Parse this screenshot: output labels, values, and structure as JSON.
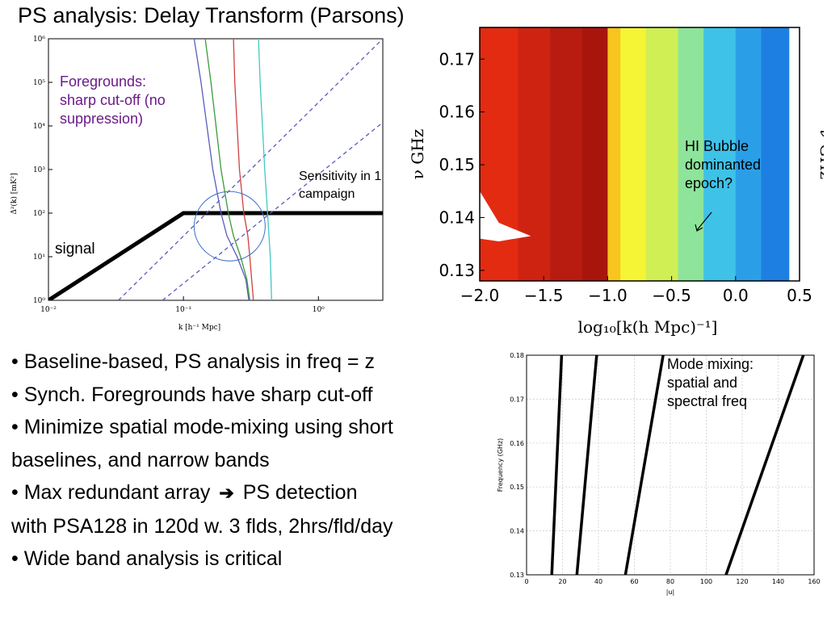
{
  "slide": {
    "title": "PS analysis: Delay Transform (Parsons)",
    "bullets": [
      {
        "text": "Baseline-based, PS analysis in freq = z"
      },
      {
        "text": "Synch. Foregrounds have sharp cut-off"
      },
      {
        "text": "Minimize spatial mode-mixing using short",
        "cont": "baselines, and narrow bands"
      },
      {
        "text": "Max redundant array",
        "arrow": "➔",
        "after": "PS detection",
        "cont": "with PSA128 in 120d w. 3 flds, 2hrs/fld/day"
      },
      {
        "text": "Wide band analysis is critical"
      }
    ]
  },
  "fig_ps": {
    "annotation_foregrounds": [
      "Foregrounds:",
      "sharp cut-off (no",
      "suppression)"
    ],
    "annotation_sensitivity": [
      "Sensitivity in 1",
      "campaign"
    ],
    "annotation_signal": "signal",
    "colors": {
      "foreground_note": "#6a1a8a",
      "signal": "#000000",
      "sensitivity": "#5b5bbf"
    }
  },
  "fig_bubble": {
    "annotation": [
      "HI Bubble",
      "dominanted",
      "epoch?"
    ],
    "colors": {
      "red": "#c81e10",
      "yellow": "#f5f535",
      "blue": "#1e8fe8"
    }
  },
  "fig_mode": {
    "annotation": [
      "Mode mixing:",
      "spatial and",
      "spectral freq"
    ]
  },
  "chart_data": [
    {
      "type": "line",
      "xlabel": "k [h⁻¹ Mpc]",
      "ylabel": "Δ²(k) [mK²]",
      "xscale": "log",
      "yscale": "log",
      "xlim": [
        0.01,
        3
      ],
      "ylim": [
        1,
        1000000
      ],
      "x_tick_labels": [
        "10⁻²",
        "10⁻¹",
        "10⁰"
      ],
      "y_tick_labels": [
        "10⁰",
        "10¹",
        "10²",
        "10³",
        "10⁴",
        "10⁵",
        "10⁶"
      ],
      "series": [
        {
          "color": "#000000",
          "points": [
            [
              0.01,
              1
            ],
            [
              0.1,
              100
            ],
            [
              3,
              100
            ]
          ]
        },
        {
          "color": "#5b5bbf",
          "dashed": true,
          "points": [
            [
              0.033,
              1
            ],
            [
              3,
              1000000
            ]
          ]
        },
        {
          "color": "#5b5bbf",
          "dashed": true,
          "points": [
            [
              0.07,
              1
            ],
            [
              3,
              12000
            ]
          ]
        },
        {
          "color": "#5b5bbf",
          "points": [
            [
              0.305,
              1
            ],
            [
              0.29,
              3
            ],
            [
              0.25,
              10
            ],
            [
              0.21,
              30
            ],
            [
              0.19,
              100
            ],
            [
              0.165,
              1000
            ],
            [
              0.135,
              100000
            ],
            [
              0.12,
              1000000
            ]
          ]
        },
        {
          "color": "#3a9b3a",
          "points": [
            [
              0.31,
              1
            ],
            [
              0.295,
              3
            ],
            [
              0.265,
              10
            ],
            [
              0.235,
              30
            ],
            [
              0.215,
              100
            ],
            [
              0.19,
              1000
            ],
            [
              0.16,
              100000
            ],
            [
              0.145,
              1000000
            ]
          ]
        },
        {
          "color": "#d04040",
          "points": [
            [
              0.33,
              1
            ],
            [
              0.32,
              3
            ],
            [
              0.31,
              10
            ],
            [
              0.3,
              30
            ],
            [
              0.28,
              100
            ],
            [
              0.26,
              1000
            ],
            [
              0.24,
              100000
            ],
            [
              0.235,
              1000000
            ]
          ]
        },
        {
          "color": "#40c8c0",
          "points": [
            [
              0.45,
              1
            ],
            [
              0.44,
              10
            ],
            [
              0.42,
              100
            ],
            [
              0.4,
              1000
            ],
            [
              0.37,
              100000
            ],
            [
              0.36,
              1000000
            ]
          ]
        }
      ]
    },
    {
      "type": "heatmap",
      "xlabel": "log₁₀[k(h Mpc)⁻¹]",
      "ylabel": "ν GHz",
      "xlim": [
        -2.0,
        0.5
      ],
      "ylim": [
        0.128,
        0.176
      ],
      "x_tick_labels": [
        "−2.0",
        "−1.5",
        "−1.0",
        "−0.5",
        "0.0",
        "0.5"
      ],
      "y_tick_labels": [
        "0.13",
        "0.14",
        "0.15",
        "0.16",
        "0.17"
      ],
      "color_bands": [
        {
          "from": -2.0,
          "to": -1.7,
          "color": "#e32b12"
        },
        {
          "from": -1.7,
          "to": -1.45,
          "color": "#cf2312"
        },
        {
          "from": -1.45,
          "to": -1.2,
          "color": "#b81b10"
        },
        {
          "from": -1.2,
          "to": -1.0,
          "color": "#a8150d"
        },
        {
          "from": -1.0,
          "to": -0.9,
          "color": "#f7c51e"
        },
        {
          "from": -0.9,
          "to": -0.7,
          "color": "#f5f535"
        },
        {
          "from": -0.7,
          "to": -0.45,
          "color": "#cfef55"
        },
        {
          "from": -0.45,
          "to": -0.25,
          "color": "#8ee49a"
        },
        {
          "from": -0.25,
          "to": 0.0,
          "color": "#3ec2e8"
        },
        {
          "from": 0.0,
          "to": 0.2,
          "color": "#2a9fe8"
        },
        {
          "from": 0.2,
          "to": 0.42,
          "color": "#1e7fe2"
        }
      ]
    },
    {
      "type": "line",
      "xlabel": "|u|",
      "ylabel": "Frequency (GHz)",
      "xlim": [
        0,
        160
      ],
      "ylim": [
        0.13,
        0.18
      ],
      "x_tick_labels": [
        "0",
        "20",
        "40",
        "60",
        "80",
        "100",
        "120",
        "140",
        "160"
      ],
      "y_tick_labels": [
        "0.13",
        "0.14",
        "0.15",
        "0.16",
        "0.17",
        "0.18"
      ],
      "series": [
        {
          "color": "#000000",
          "points": [
            [
              14,
              0.13
            ],
            [
              19.5,
              0.18
            ]
          ]
        },
        {
          "color": "#000000",
          "points": [
            [
              28,
              0.13
            ],
            [
              39,
              0.18
            ]
          ]
        },
        {
          "color": "#000000",
          "points": [
            [
              55,
              0.13
            ],
            [
              76,
              0.18
            ]
          ]
        },
        {
          "color": "#000000",
          "points": [
            [
              111,
              0.13
            ],
            [
              154,
              0.18
            ]
          ]
        }
      ]
    }
  ]
}
